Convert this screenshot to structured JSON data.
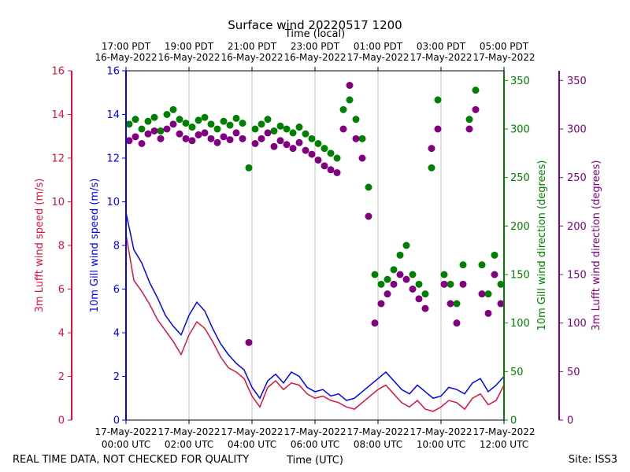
{
  "chart_data": {
    "type": "line+scatter",
    "title": "Surface wind 20220517 1200",
    "top_axis_label": "Time (local)",
    "xlabel": "Time (UTC)",
    "footer_left": "REAL TIME DATA, NOT CHECKED FOR QUALITY",
    "footer_right": "Site: ISS3",
    "x_range_hours_utc": [
      0,
      12
    ],
    "bottom_ticks": [
      {
        "hour": 0,
        "line1": "17-May-2022",
        "line2": "00:00 UTC"
      },
      {
        "hour": 2,
        "line1": "17-May-2022",
        "line2": "02:00 UTC"
      },
      {
        "hour": 4,
        "line1": "17-May-2022",
        "line2": "04:00 UTC"
      },
      {
        "hour": 6,
        "line1": "17-May-2022",
        "line2": "06:00 UTC"
      },
      {
        "hour": 8,
        "line1": "17-May-2022",
        "line2": "08:00 UTC"
      },
      {
        "hour": 10,
        "line1": "17-May-2022",
        "line2": "10:00 UTC"
      },
      {
        "hour": 12,
        "line1": "17-May-2022",
        "line2": "12:00 UTC"
      }
    ],
    "top_ticks": [
      {
        "hour": 0,
        "line1": "17:00 PDT",
        "line2": "16-May-2022"
      },
      {
        "hour": 2,
        "line1": "19:00 PDT",
        "line2": "16-May-2022"
      },
      {
        "hour": 4,
        "line1": "21:00 PDT",
        "line2": "16-May-2022"
      },
      {
        "hour": 6,
        "line1": "23:00 PDT",
        "line2": "16-May-2022"
      },
      {
        "hour": 8,
        "line1": "01:00 PDT",
        "line2": "17-May-2022"
      },
      {
        "hour": 10,
        "line1": "03:00 PDT",
        "line2": "17-May-2022"
      },
      {
        "hour": 12,
        "line1": "05:00 PDT",
        "line2": "17-May-2022"
      }
    ],
    "speed_ylim": [
      0,
      16
    ],
    "speed_ticks": [
      0,
      2,
      4,
      6,
      8,
      10,
      12,
      14,
      16
    ],
    "direction_ylim": [
      0,
      360
    ],
    "direction_ticks": [
      0,
      50,
      100,
      150,
      200,
      250,
      300,
      350
    ],
    "axes": {
      "lufft_speed_label": "3m Lufft wind speed (m/s)",
      "gill_speed_label": "10m Gill wind speed (m/s)",
      "gill_dir_label": "10m Gill wind direction (degrees)",
      "lufft_dir_label": "3m Lufft wind direction (degrees)"
    },
    "colors": {
      "lufft_speed": "#dc143c",
      "gill_speed": "#0000ff",
      "gill_dir": "#008000",
      "lufft_dir": "#800080"
    },
    "series": [
      {
        "name": "10m Gill wind speed",
        "axis": "speed",
        "style": "line",
        "x_hours": [
          0,
          0.25,
          0.5,
          0.75,
          1.0,
          1.25,
          1.5,
          1.75,
          2.0,
          2.25,
          2.5,
          2.75,
          3.0,
          3.25,
          3.5,
          3.75,
          4.0,
          4.25,
          4.5,
          4.75,
          5.0,
          5.25,
          5.5,
          5.75,
          6.0,
          6.25,
          6.5,
          6.75,
          7.0,
          7.25,
          7.5,
          7.75,
          8.0,
          8.25,
          8.5,
          8.75,
          9.0,
          9.25,
          9.5,
          9.75,
          10.0,
          10.25,
          10.5,
          10.75,
          11.0,
          11.25,
          11.5,
          11.75,
          12.0
        ],
        "values": [
          9.5,
          7.8,
          7.2,
          6.3,
          5.6,
          4.8,
          4.3,
          3.9,
          4.8,
          5.4,
          5.0,
          4.2,
          3.5,
          3.0,
          2.6,
          2.3,
          1.5,
          1.0,
          1.8,
          2.1,
          1.7,
          2.2,
          2.0,
          1.5,
          1.3,
          1.4,
          1.1,
          1.2,
          0.9,
          1.0,
          1.3,
          1.6,
          1.9,
          2.2,
          1.8,
          1.4,
          1.2,
          1.6,
          1.3,
          1.0,
          1.1,
          1.5,
          1.4,
          1.2,
          1.7,
          1.9,
          1.3,
          1.6,
          2.0
        ]
      },
      {
        "name": "3m Lufft wind speed",
        "axis": "speed",
        "style": "line",
        "x_hours": [
          0,
          0.25,
          0.5,
          0.75,
          1.0,
          1.25,
          1.5,
          1.75,
          2.0,
          2.25,
          2.5,
          2.75,
          3.0,
          3.25,
          3.5,
          3.75,
          4.0,
          4.25,
          4.5,
          4.75,
          5.0,
          5.25,
          5.5,
          5.75,
          6.0,
          6.25,
          6.5,
          6.75,
          7.0,
          7.25,
          7.5,
          7.75,
          8.0,
          8.25,
          8.5,
          8.75,
          9.0,
          9.25,
          9.5,
          9.75,
          10.0,
          10.25,
          10.5,
          10.75,
          11.0,
          11.25,
          11.5,
          11.75,
          12.0
        ],
        "values": [
          8.5,
          6.4,
          5.9,
          5.3,
          4.6,
          4.1,
          3.6,
          3.0,
          3.9,
          4.5,
          4.2,
          3.6,
          2.9,
          2.4,
          2.2,
          1.9,
          1.1,
          0.6,
          1.5,
          1.8,
          1.4,
          1.7,
          1.6,
          1.2,
          1.0,
          1.1,
          0.9,
          0.8,
          0.6,
          0.5,
          0.8,
          1.1,
          1.4,
          1.6,
          1.2,
          0.8,
          0.6,
          0.9,
          0.5,
          0.4,
          0.6,
          0.9,
          0.8,
          0.5,
          1.0,
          1.2,
          0.7,
          0.9,
          1.6
        ]
      },
      {
        "name": "10m Gill wind direction",
        "axis": "direction",
        "style": "scatter",
        "x_hours": [
          0.1,
          0.3,
          0.5,
          0.7,
          0.9,
          1.1,
          1.3,
          1.5,
          1.7,
          1.9,
          2.1,
          2.3,
          2.5,
          2.7,
          2.9,
          3.1,
          3.3,
          3.5,
          3.7,
          3.9,
          4.1,
          4.3,
          4.5,
          4.7,
          4.9,
          5.1,
          5.3,
          5.5,
          5.7,
          5.9,
          6.1,
          6.3,
          6.5,
          6.7,
          6.9,
          7.1,
          7.3,
          7.5,
          7.7,
          7.9,
          8.1,
          8.3,
          8.5,
          8.7,
          8.9,
          9.1,
          9.3,
          9.5,
          9.7,
          9.9,
          10.1,
          10.3,
          10.5,
          10.7,
          10.9,
          11.1,
          11.3,
          11.5,
          11.7,
          11.9
        ],
        "values": [
          305,
          310,
          300,
          308,
          312,
          298,
          315,
          320,
          310,
          306,
          302,
          309,
          312,
          305,
          300,
          308,
          304,
          311,
          306,
          260,
          300,
          305,
          310,
          298,
          303,
          300,
          296,
          302,
          295,
          290,
          285,
          280,
          275,
          270,
          320,
          330,
          310,
          290,
          240,
          150,
          140,
          145,
          155,
          170,
          180,
          150,
          140,
          130,
          260,
          330,
          150,
          140,
          120,
          160,
          310,
          340,
          160,
          130,
          170,
          140
        ]
      },
      {
        "name": "3m Lufft wind direction",
        "axis": "direction",
        "style": "scatter",
        "x_hours": [
          0.1,
          0.3,
          0.5,
          0.7,
          0.9,
          1.1,
          1.3,
          1.5,
          1.7,
          1.9,
          2.1,
          2.3,
          2.5,
          2.7,
          2.9,
          3.1,
          3.3,
          3.5,
          3.7,
          3.9,
          4.1,
          4.3,
          4.5,
          4.7,
          4.9,
          5.1,
          5.3,
          5.5,
          5.7,
          5.9,
          6.1,
          6.3,
          6.5,
          6.7,
          6.9,
          7.1,
          7.3,
          7.5,
          7.7,
          7.9,
          8.1,
          8.3,
          8.5,
          8.7,
          8.9,
          9.1,
          9.3,
          9.5,
          9.7,
          9.9,
          10.1,
          10.3,
          10.5,
          10.7,
          10.9,
          11.1,
          11.3,
          11.5,
          11.7,
          11.9
        ],
        "values": [
          288,
          292,
          285,
          295,
          298,
          290,
          300,
          305,
          295,
          290,
          288,
          294,
          296,
          290,
          286,
          292,
          289,
          296,
          290,
          80,
          285,
          290,
          296,
          282,
          288,
          284,
          280,
          286,
          278,
          274,
          268,
          262,
          258,
          255,
          300,
          345,
          290,
          270,
          210,
          100,
          120,
          130,
          140,
          150,
          145,
          135,
          125,
          115,
          280,
          300,
          140,
          120,
          100,
          140,
          300,
          320,
          130,
          110,
          150,
          120
        ]
      }
    ]
  }
}
